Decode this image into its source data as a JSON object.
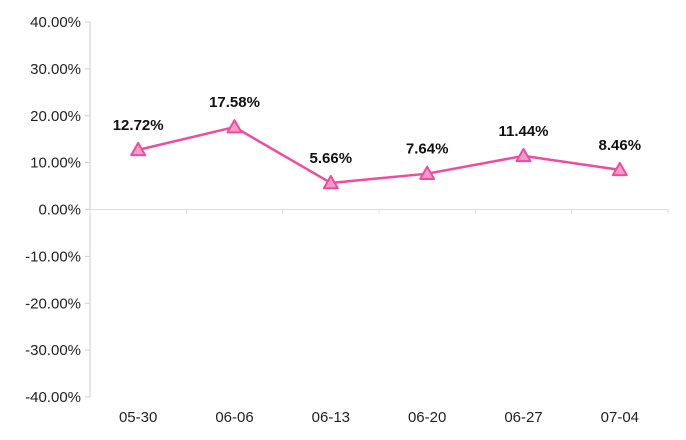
{
  "chart_data": {
    "type": "line",
    "categories": [
      "05-30",
      "06-06",
      "06-13",
      "06-20",
      "06-27",
      "07-04"
    ],
    "series": [
      {
        "values": [
          12.72,
          17.58,
          5.66,
          7.64,
          11.44,
          8.46
        ],
        "labels": [
          "12.72%",
          "17.58%",
          "5.66%",
          "7.64%",
          "11.44%",
          "8.46%"
        ],
        "color": "#ec4d9e",
        "marker": "triangle"
      }
    ],
    "ylim": [
      -40,
      40
    ],
    "yticks": [
      40,
      30,
      20,
      10,
      0,
      -10,
      -20,
      -30,
      -40
    ],
    "ytick_labels": [
      "40.00%",
      "30.00%",
      "20.00%",
      "10.00%",
      "0.00%",
      "-10.00%",
      "-20.00%",
      "-30.00%",
      "-40.00%"
    ],
    "grid": false,
    "title": "",
    "xlabel": "",
    "ylabel": ""
  }
}
